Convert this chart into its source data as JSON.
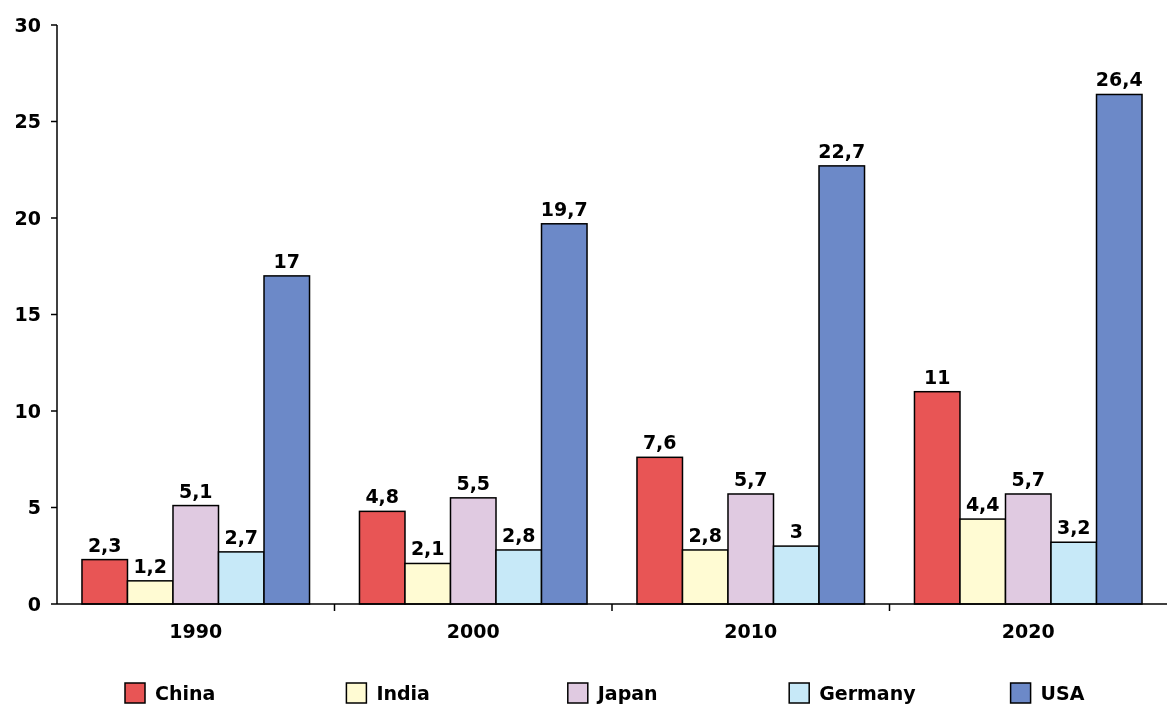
{
  "chart_data": {
    "type": "bar",
    "categories": [
      "1990",
      "2000",
      "2010",
      "2020"
    ],
    "series": [
      {
        "name": "China",
        "color": "#e85555",
        "values": [
          2.3,
          4.8,
          7.6,
          11
        ],
        "value_labels": [
          "2,3",
          "4,8",
          "7,6",
          "11"
        ]
      },
      {
        "name": "India",
        "color": "#fffbd3",
        "values": [
          1.2,
          2.1,
          2.8,
          4.4
        ],
        "value_labels": [
          "1,2",
          "2,1",
          "2,8",
          "4,4"
        ]
      },
      {
        "name": "Japan",
        "color": "#e0cae1",
        "values": [
          5.1,
          5.5,
          5.7,
          5.7
        ],
        "value_labels": [
          "5,1",
          "5,5",
          "5,7",
          "5,7"
        ]
      },
      {
        "name": "Germany",
        "color": "#c7e9f8",
        "values": [
          2.7,
          2.8,
          3,
          3.2
        ],
        "value_labels": [
          "2,7",
          "2,8",
          "3",
          "3,2"
        ]
      },
      {
        "name": "USA",
        "color": "#6c89c8",
        "values": [
          17,
          19.7,
          22.7,
          26.4
        ],
        "value_labels": [
          "17",
          "19,7",
          "22,7",
          "26,4"
        ]
      }
    ],
    "ylim": [
      0,
      30
    ],
    "yticks": [
      0,
      5,
      10,
      15,
      20,
      25,
      30
    ],
    "grid": false,
    "legend": "bottom"
  }
}
